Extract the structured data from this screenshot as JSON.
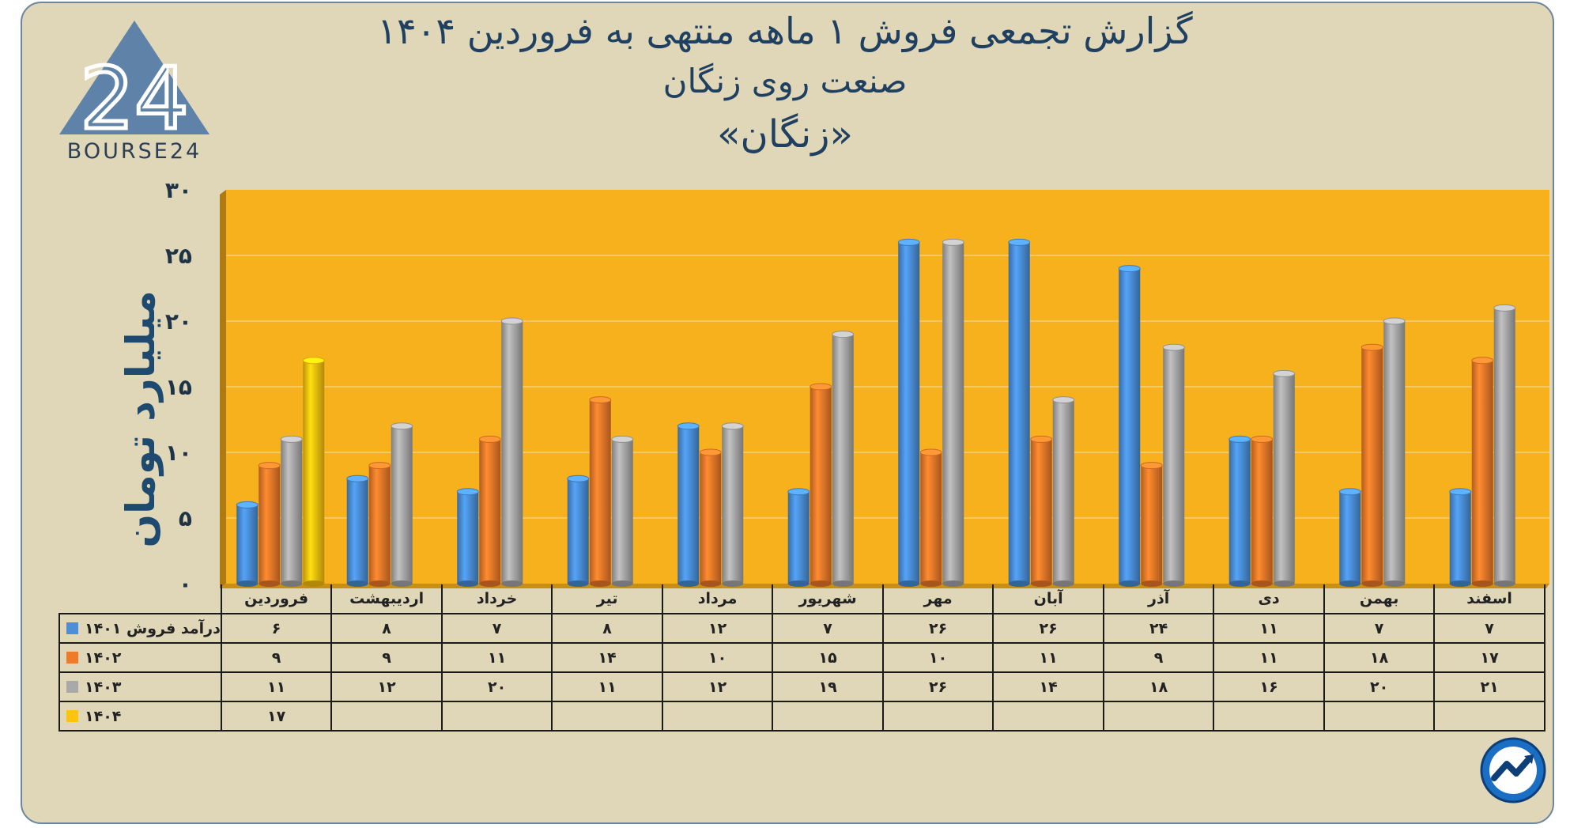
{
  "title": {
    "line1": "گزارش تجمعی فروش ۱ ماهه منتهی به فروردین ۱۴۰۴",
    "line2": "صنعت روی زنگان",
    "line3": "«زنگان»"
  },
  "logo": {
    "text": "BOURSE24",
    "mark": "24"
  },
  "colors": {
    "plot_background": "#f7b11c",
    "frame_background": "#e0d6b8",
    "title": "#1f4060"
  },
  "icons": {
    "badge": "bourse-chart-arrow-icon"
  },
  "chart_data": {
    "type": "bar",
    "ylabel": "میلیارد تومان",
    "ylim": [
      0,
      30
    ],
    "yticks": [
      {
        "value": 0,
        "label": "۰"
      },
      {
        "value": 5,
        "label": "۵"
      },
      {
        "value": 10,
        "label": "۱۰"
      },
      {
        "value": 15,
        "label": "۱۵"
      },
      {
        "value": 20,
        "label": "۲۰"
      },
      {
        "value": 25,
        "label": "۲۵"
      },
      {
        "value": 30,
        "label": "۳۰"
      }
    ],
    "grid": true,
    "categories": [
      "فروردین",
      "اردیبهشت",
      "خرداد",
      "تیر",
      "مرداد",
      "شهریور",
      "مهر",
      "آبان",
      "آذر",
      "دی",
      "بهمن",
      "اسفند"
    ],
    "series": [
      {
        "name": "درآمد فروش ۱۴۰۱",
        "color": "#4a8fd8",
        "values": [
          6,
          8,
          7,
          8,
          12,
          7,
          26,
          26,
          24,
          11,
          7,
          7
        ],
        "labels": [
          "۶",
          "۸",
          "۷",
          "۸",
          "۱۲",
          "۷",
          "۲۶",
          "۲۶",
          "۲۴",
          "۱۱",
          "۷",
          "۷"
        ]
      },
      {
        "name": "۱۴۰۲",
        "color": "#ef7a2a",
        "values": [
          9,
          9,
          11,
          14,
          10,
          15,
          10,
          11,
          9,
          11,
          18,
          17
        ],
        "labels": [
          "۹",
          "۹",
          "۱۱",
          "۱۴",
          "۱۰",
          "۱۵",
          "۱۰",
          "۱۱",
          "۹",
          "۱۱",
          "۱۸",
          "۱۷"
        ]
      },
      {
        "name": "۱۴۰۳",
        "color": "#a9a9a9",
        "values": [
          11,
          12,
          20,
          11,
          12,
          19,
          26,
          14,
          18,
          16,
          20,
          21
        ],
        "labels": [
          "۱۱",
          "۱۲",
          "۲۰",
          "۱۱",
          "۱۲",
          "۱۹",
          "۲۶",
          "۱۴",
          "۱۸",
          "۱۶",
          "۲۰",
          "۲۱"
        ]
      },
      {
        "name": "۱۴۰۴",
        "color": "#ffc20e",
        "values": [
          17,
          null,
          null,
          null,
          null,
          null,
          null,
          null,
          null,
          null,
          null,
          null
        ],
        "labels": [
          "۱۷",
          "",
          "",
          "",
          "",
          "",
          "",
          "",
          "",
          "",
          "",
          ""
        ]
      }
    ],
    "legend": "data-table-bottom"
  }
}
